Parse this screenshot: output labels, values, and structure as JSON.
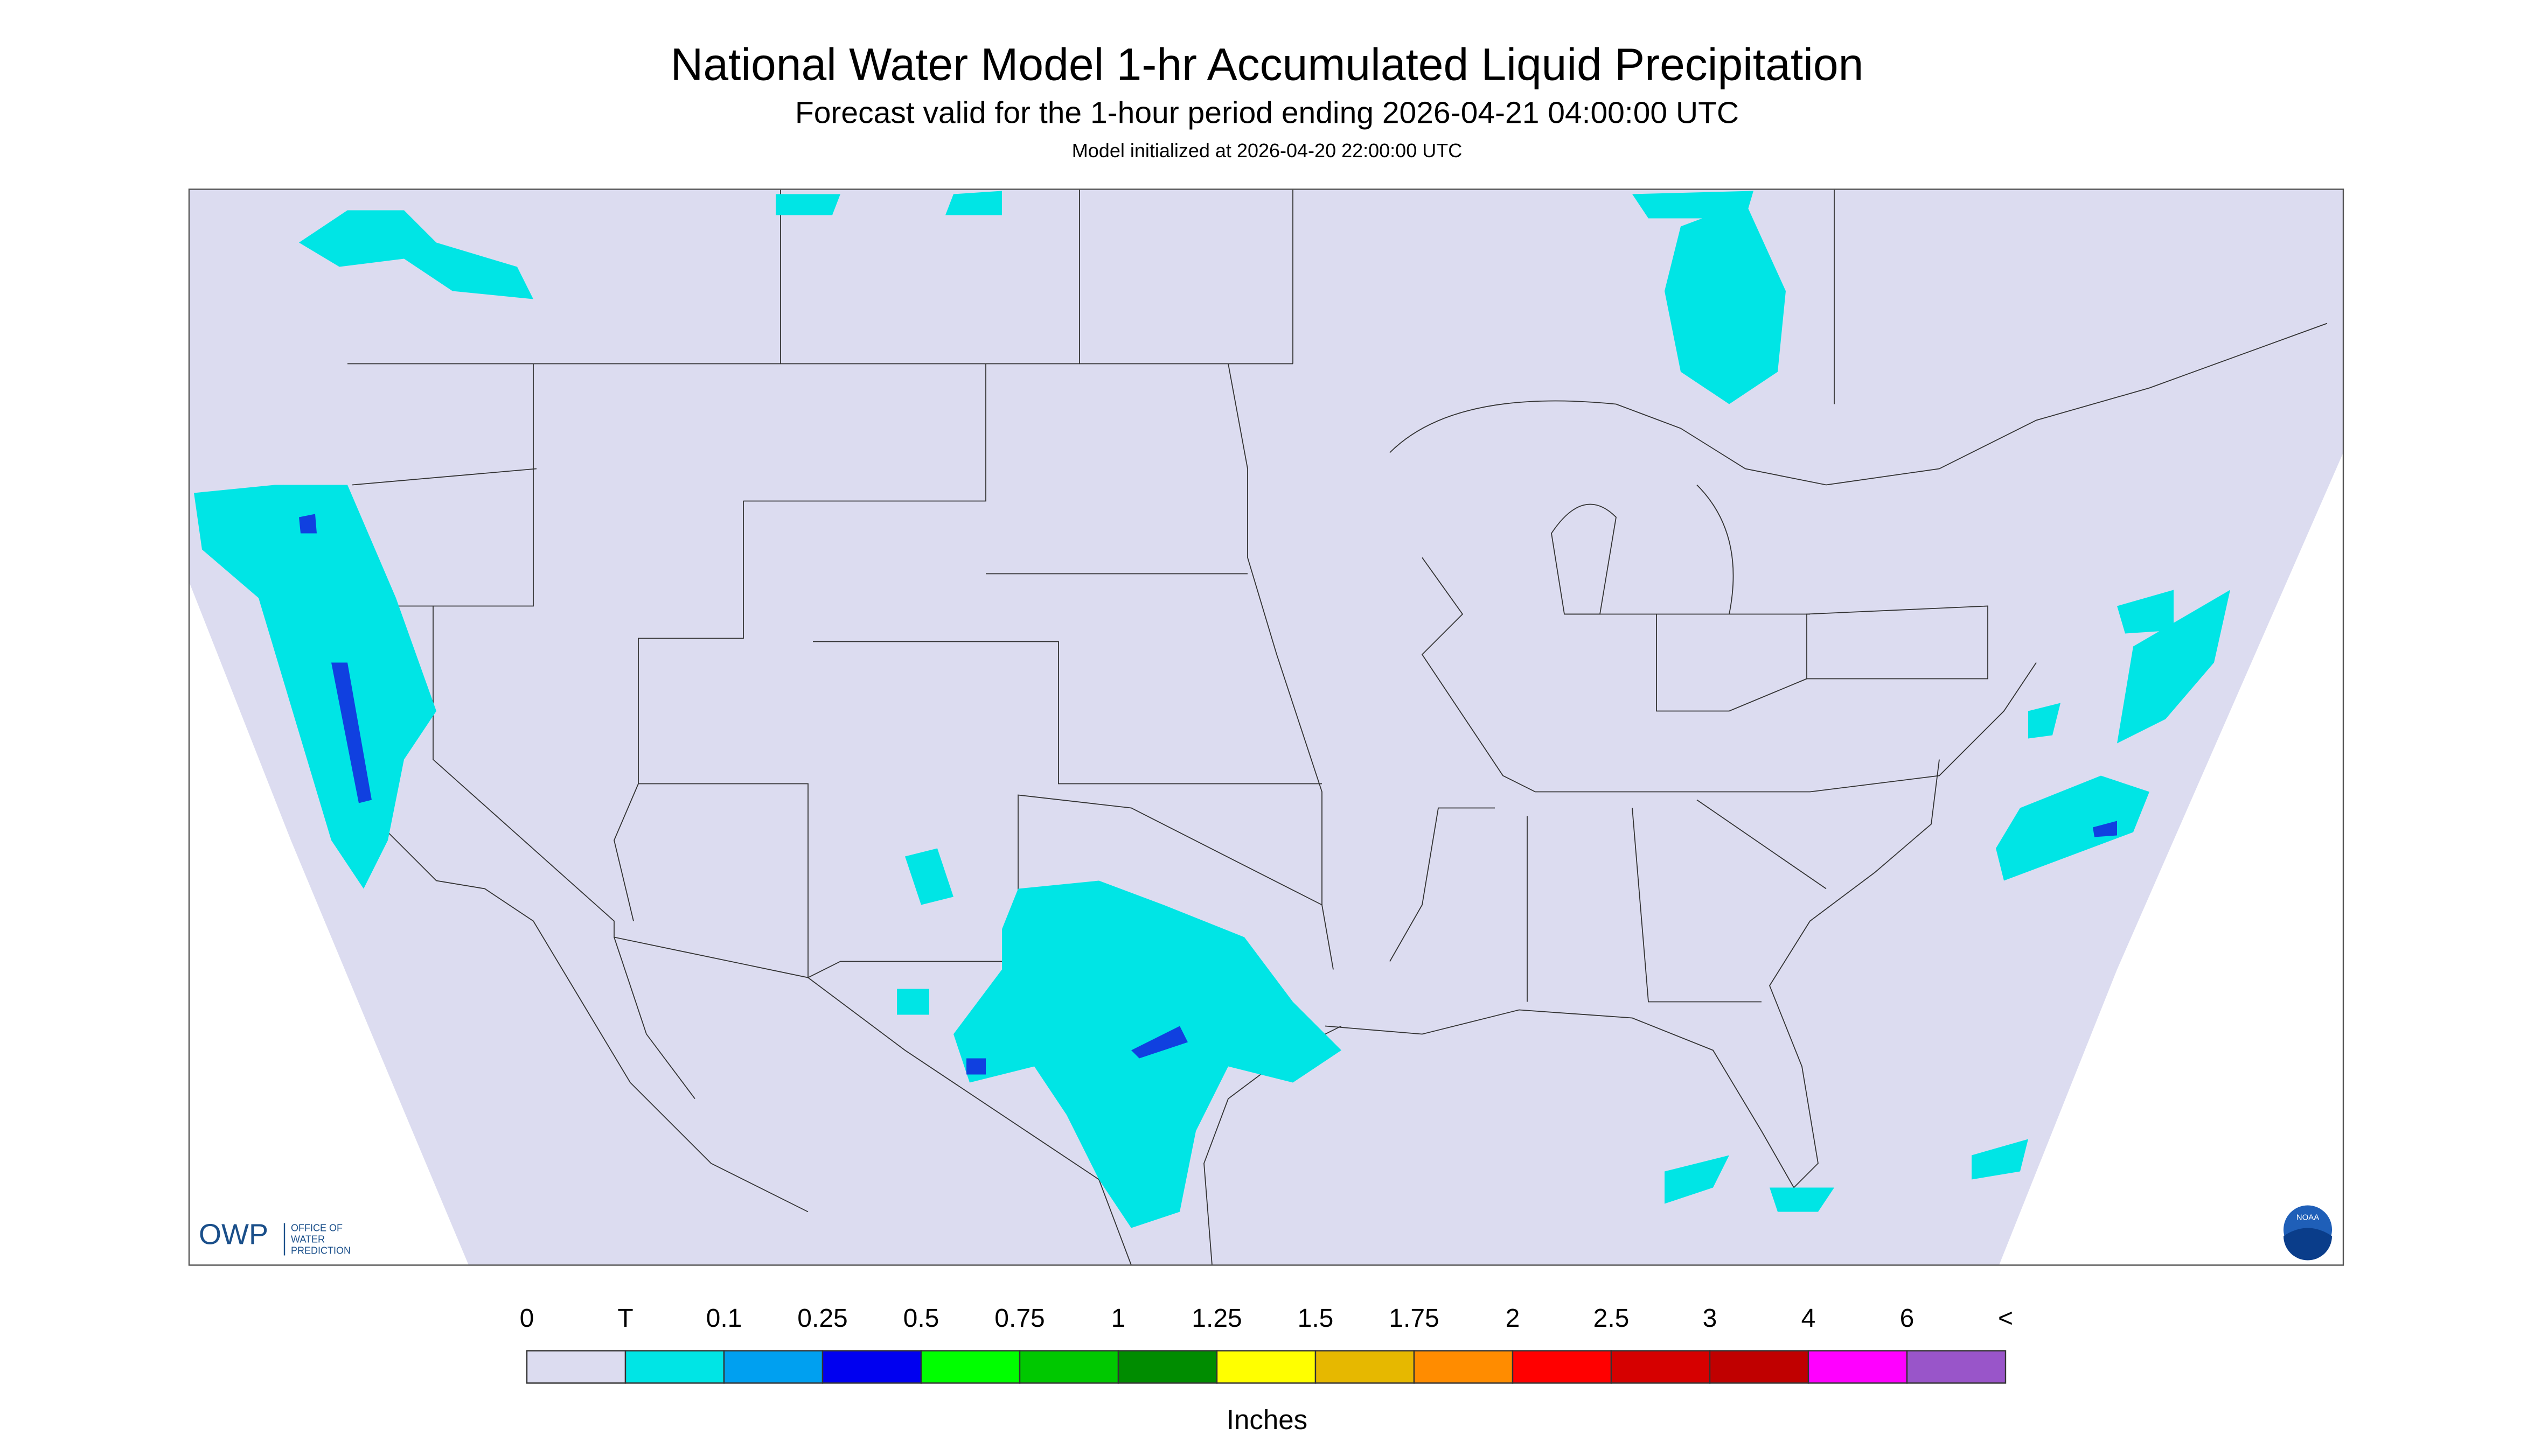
{
  "header": {
    "title": "National Water Model 1-hr Accumulated Liquid Precipitation",
    "subtitle": "Forecast valid for the 1-hour period ending 2026-04-21 04:00:00 UTC",
    "init": "Model initialized at 2026-04-20 22:00:00 UTC"
  },
  "logo": {
    "abbr": "OWP",
    "lines": [
      "OFFICE OF",
      "WATER",
      "PREDICTION"
    ],
    "noaa": "NOAA"
  },
  "legend": {
    "labels": [
      "0",
      "T",
      "0.1",
      "0.25",
      "0.5",
      "0.75",
      "1",
      "1.25",
      "1.5",
      "1.75",
      "2",
      "2.5",
      "3",
      "4",
      "6",
      "<"
    ],
    "colors": [
      "#dcdcf0",
      "#00e5e5",
      "#00a0f0",
      "#0000f0",
      "#00ff00",
      "#00c800",
      "#008c00",
      "#ffff00",
      "#e6b800",
      "#ff8c00",
      "#ff0000",
      "#d60000",
      "#c00000",
      "#ff00ff",
      "#9955c9"
    ],
    "unit": "Inches"
  }
}
